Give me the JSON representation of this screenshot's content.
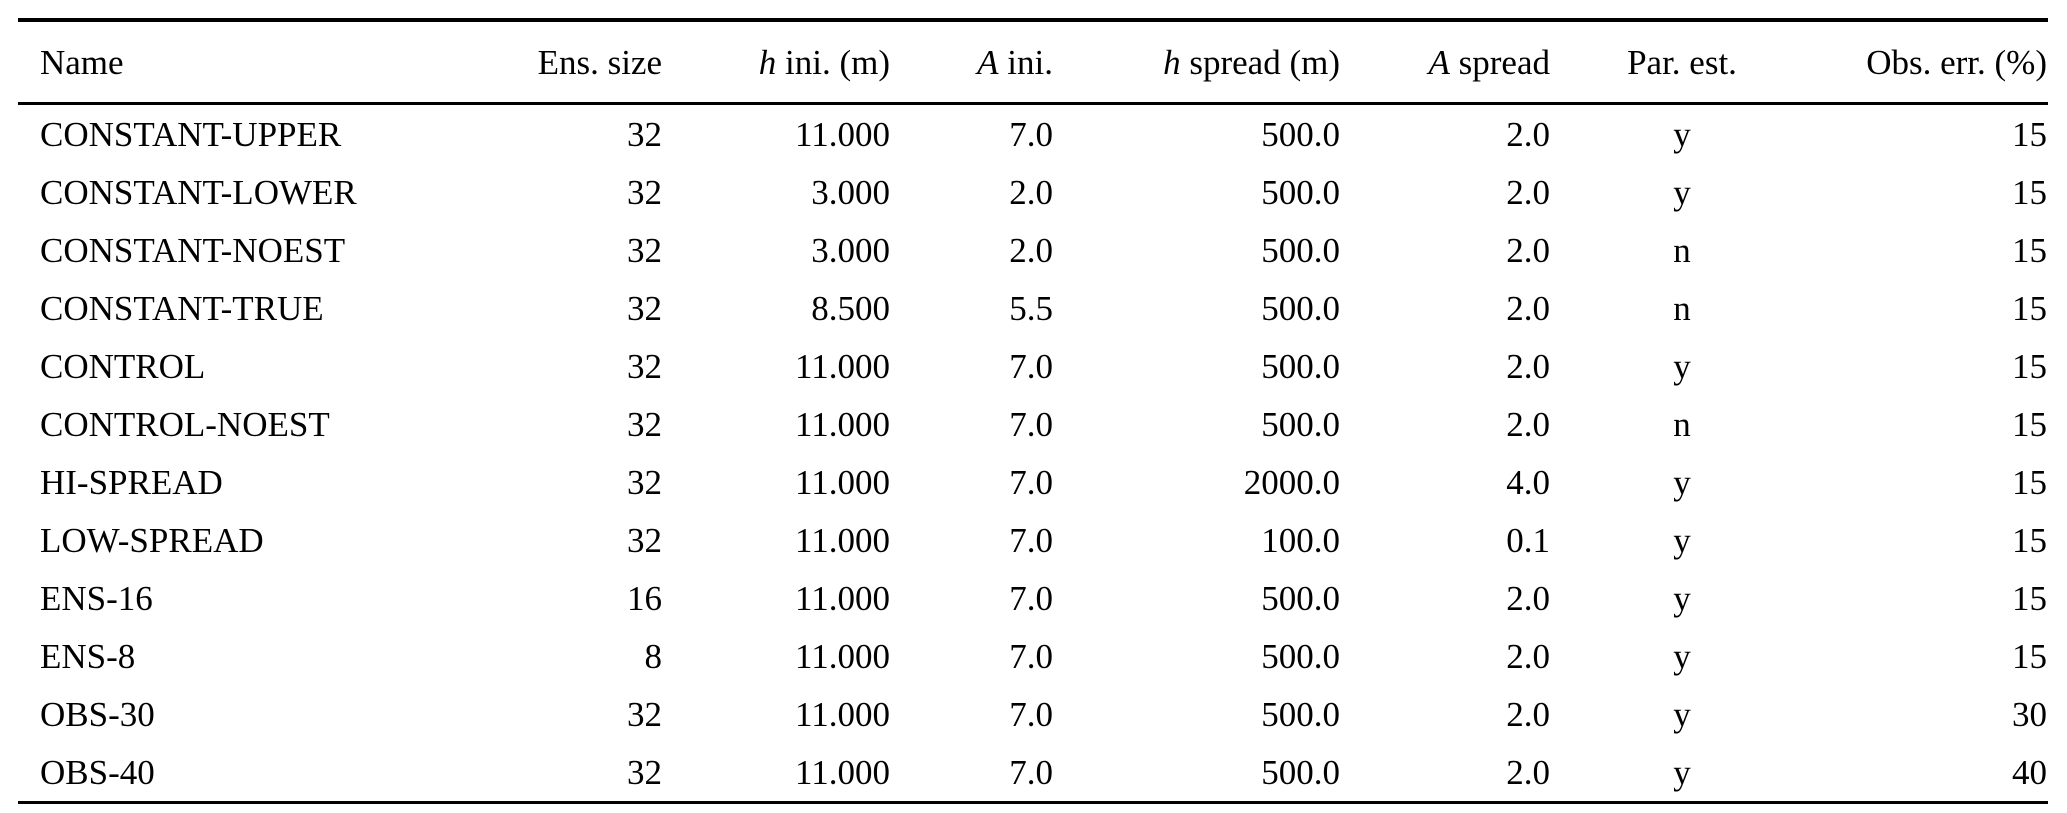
{
  "table": {
    "background_color": "#ffffff",
    "text_color": "#000000",
    "rule_color": "#000000",
    "columns": [
      {
        "id": "name",
        "align": "left",
        "parts": [
          {
            "t": "Name"
          }
        ]
      },
      {
        "id": "ens-size",
        "align": "right",
        "parts": [
          {
            "t": "Ens. size"
          }
        ]
      },
      {
        "id": "h-ini",
        "align": "right",
        "parts": [
          {
            "t": "h",
            "i": true
          },
          {
            "t": " ini. (m)"
          }
        ]
      },
      {
        "id": "a-ini",
        "align": "right",
        "parts": [
          {
            "t": "A",
            "i": true
          },
          {
            "t": " ini."
          }
        ]
      },
      {
        "id": "h-spread",
        "align": "right",
        "parts": [
          {
            "t": "h",
            "i": true
          },
          {
            "t": " spread (m)"
          }
        ]
      },
      {
        "id": "a-spread",
        "align": "right",
        "parts": [
          {
            "t": "A",
            "i": true
          },
          {
            "t": " spread"
          }
        ]
      },
      {
        "id": "par-est",
        "align": "center",
        "parts": [
          {
            "t": "Par. est."
          }
        ]
      },
      {
        "id": "obs-err",
        "align": "right",
        "parts": [
          {
            "t": "Obs. err. (%)"
          }
        ]
      }
    ],
    "rows": [
      [
        "CONSTANT-UPPER",
        "32",
        "11.000",
        "7.0",
        "500.0",
        "2.0",
        "y",
        "15"
      ],
      [
        "CONSTANT-LOWER",
        "32",
        "3.000",
        "2.0",
        "500.0",
        "2.0",
        "y",
        "15"
      ],
      [
        "CONSTANT-NOEST",
        "32",
        "3.000",
        "2.0",
        "500.0",
        "2.0",
        "n",
        "15"
      ],
      [
        "CONSTANT-TRUE",
        "32",
        "8.500",
        "5.5",
        "500.0",
        "2.0",
        "n",
        "15"
      ],
      [
        "CONTROL",
        "32",
        "11.000",
        "7.0",
        "500.0",
        "2.0",
        "y",
        "15"
      ],
      [
        "CONTROL-NOEST",
        "32",
        "11.000",
        "7.0",
        "500.0",
        "2.0",
        "n",
        "15"
      ],
      [
        "HI-SPREAD",
        "32",
        "11.000",
        "7.0",
        "2000.0",
        "4.0",
        "y",
        "15"
      ],
      [
        "LOW-SPREAD",
        "32",
        "11.000",
        "7.0",
        "100.0",
        "0.1",
        "y",
        "15"
      ],
      [
        "ENS-16",
        "16",
        "11.000",
        "7.0",
        "500.0",
        "2.0",
        "y",
        "15"
      ],
      [
        "ENS-8",
        "8",
        "11.000",
        "7.0",
        "500.0",
        "2.0",
        "y",
        "15"
      ],
      [
        "OBS-30",
        "32",
        "11.000",
        "7.0",
        "500.0",
        "2.0",
        "y",
        "30"
      ],
      [
        "OBS-40",
        "32",
        "11.000",
        "7.0",
        "500.0",
        "2.0",
        "y",
        "40"
      ]
    ]
  }
}
